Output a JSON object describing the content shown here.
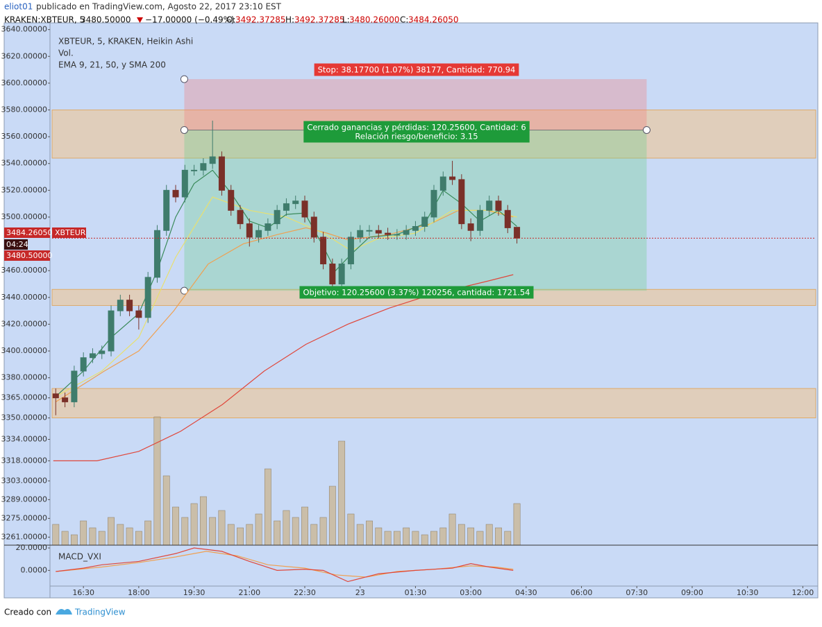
{
  "header": {
    "author": "eliot01",
    "published": "publicado en TradingView.com, Agosto 22, 2017 23:10 EST",
    "symbol": "KRAKEN:XBTEUR, 5",
    "last": "3480.50000",
    "change": "−17.00000 (−0.49%)",
    "o_label": "O:",
    "o": "3492.37285",
    "h_label": "H:",
    "h": "3492.37285",
    "l_label": "L:",
    "l": "3480.26000",
    "c_label": "C:",
    "c": "3484.26050"
  },
  "chart_data": {
    "type": "candlestick",
    "title": "XBTEUR, 5, KRAKEN, Heikin Ashi",
    "volume_label": "Vol.",
    "indicators_label": "EMA 9, 21, 50, y SMA 200",
    "x": [
      945,
      960,
      975,
      990,
      1005,
      1020,
      1035,
      1050,
      1065,
      1080,
      1095,
      1110,
      1125,
      1140,
      1155,
      1170,
      1185,
      1200,
      1215,
      1230,
      1245,
      1260,
      1275,
      1290,
      1305,
      1320,
      1335,
      1350,
      1365,
      1380,
      1395,
      1410,
      1425,
      1440,
      1455,
      1470,
      1485,
      1500,
      1515,
      1530,
      1545,
      1560,
      1575,
      1590,
      1605,
      1620,
      1635,
      1650,
      1665,
      1680,
      1695
    ],
    "open": [
      3368,
      3365,
      3362,
      3385,
      3395,
      3398,
      3400,
      3430,
      3438,
      3430,
      3425,
      3455,
      3490,
      3520,
      3515,
      3535,
      3535,
      3540,
      3545,
      3520,
      3505,
      3495,
      3485,
      3490,
      3495,
      3505,
      3510,
      3512,
      3500,
      3485,
      3465,
      3450,
      3465,
      3485,
      3490,
      3490,
      3488,
      3487,
      3487,
      3490,
      3493,
      3500,
      3520,
      3530,
      3528,
      3495,
      3490,
      3505,
      3512,
      3505,
      3492.37285
    ],
    "high": [
      3372,
      3369,
      3389,
      3399,
      3402,
      3404,
      3434,
      3442,
      3442,
      3434,
      3459,
      3494,
      3524,
      3524,
      3539,
      3539,
      3544,
      3572,
      3549,
      3524,
      3509,
      3499,
      3494,
      3499,
      3509,
      3514,
      3516,
      3516,
      3504,
      3489,
      3469,
      3469,
      3489,
      3494,
      3494,
      3494,
      3492,
      3491,
      3494,
      3497,
      3504,
      3524,
      3534,
      3542,
      3532,
      3499,
      3509,
      3516,
      3516,
      3509,
      3492.37285
    ],
    "low": [
      3352,
      3358,
      3358,
      3381,
      3391,
      3394,
      3396,
      3426,
      3426,
      3416,
      3421,
      3451,
      3486,
      3511,
      3511,
      3531,
      3531,
      3536,
      3516,
      3501,
      3491,
      3478,
      3481,
      3486,
      3491,
      3501,
      3506,
      3496,
      3481,
      3461,
      3443,
      3446,
      3461,
      3481,
      3486,
      3484,
      3483,
      3483,
      3483,
      3486,
      3489,
      3496,
      3516,
      3524,
      3491,
      3482,
      3486,
      3501,
      3501,
      3488,
      3480.26
    ],
    "close": [
      3365,
      3362,
      3385,
      3395,
      3398,
      3400,
      3430,
      3438,
      3430,
      3425,
      3455,
      3490,
      3520,
      3515,
      3535,
      3535,
      3540,
      3545,
      3520,
      3505,
      3495,
      3485,
      3490,
      3495,
      3505,
      3510,
      3512,
      3500,
      3485,
      3465,
      3450,
      3465,
      3485,
      3490,
      3490,
      3488,
      3487,
      3487,
      3490,
      3493,
      3500,
      3520,
      3530,
      3528,
      3495,
      3490,
      3505,
      3512,
      3505,
      3492,
      3484.2605
    ],
    "up_color": "#3f7c6c",
    "down_color": "#7a3029",
    "volume": [
      30,
      20,
      15,
      35,
      25,
      20,
      40,
      30,
      25,
      20,
      35,
      185,
      100,
      55,
      40,
      60,
      70,
      40,
      50,
      30,
      25,
      30,
      45,
      110,
      35,
      50,
      40,
      55,
      30,
      40,
      85,
      150,
      45,
      30,
      35,
      25,
      20,
      20,
      25,
      20,
      15,
      20,
      25,
      45,
      30,
      25,
      20,
      30,
      25,
      20,
      60
    ],
    "volume_color": "#c9b48f",
    "lines": [
      {
        "color": "#e0473b",
        "x": [
          941,
          1012,
          1080,
          1148,
          1216,
          1284,
          1352,
          1420,
          1487,
          1555,
          1646,
          1689
        ],
        "values": [
          3318,
          3318,
          3325,
          3340,
          3360,
          3385,
          3405,
          3420,
          3432,
          3442,
          3452,
          3457
        ]
      },
      {
        "color": "#f0a050",
        "x": [
          945,
          1024,
          1080,
          1137,
          1193,
          1250,
          1306,
          1352,
          1386,
          1420,
          1487,
          1555,
          1600,
          1646,
          1689
        ],
        "values": [
          3362,
          3385,
          3400,
          3430,
          3465,
          3480,
          3487,
          3492,
          3488,
          3483,
          3487,
          3495,
          3505,
          3505,
          3500
        ]
      },
      {
        "color": "#e8e070",
        "x": [
          945,
          1020,
          1080,
          1140,
          1200,
          1260,
          1320,
          1380,
          1425,
          1470,
          1530,
          1590,
          1650,
          1695
        ],
        "values": [
          3366,
          3385,
          3410,
          3470,
          3515,
          3505,
          3500,
          3488,
          3475,
          3484,
          3488,
          3505,
          3505,
          3500
        ]
      },
      {
        "color": "#3a8a5a",
        "x": [
          945,
          990,
          1035,
          1080,
          1110,
          1140,
          1170,
          1200,
          1230,
          1260,
          1290,
          1320,
          1350,
          1380,
          1400,
          1425,
          1455,
          1500,
          1545,
          1575,
          1605,
          1635,
          1665,
          1695
        ],
        "values": [
          3366,
          3385,
          3410,
          3428,
          3460,
          3500,
          3525,
          3535,
          3518,
          3497,
          3492,
          3502,
          3503,
          3478,
          3460,
          3472,
          3485,
          3487,
          3495,
          3520,
          3510,
          3497,
          3505,
          3493
        ]
      }
    ],
    "xlim": [
      939,
      2181
    ],
    "xticks": [
      {
        "value": 990,
        "label": "16:30"
      },
      {
        "value": 1080,
        "label": "18:00"
      },
      {
        "value": 1170,
        "label": "19:30"
      },
      {
        "value": 1260,
        "label": "21:00"
      },
      {
        "value": 1350,
        "label": "22:30"
      },
      {
        "value": 1440,
        "label": "23"
      },
      {
        "value": 1530,
        "label": "01:30"
      },
      {
        "value": 1620,
        "label": "03:00"
      },
      {
        "value": 1710,
        "label": "04:30"
      },
      {
        "value": 1800,
        "label": "06:00"
      },
      {
        "value": 1890,
        "label": "07:30"
      },
      {
        "value": 1980,
        "label": "09:00"
      },
      {
        "value": 2070,
        "label": "10:30"
      },
      {
        "value": 2160,
        "label": "12:00"
      }
    ],
    "ylim": [
      3255,
      3645
    ],
    "yticks": [
      {
        "value": 3640,
        "label": "3640.00000"
      },
      {
        "value": 3620,
        "label": "3620.00000"
      },
      {
        "value": 3600,
        "label": "3600.00000"
      },
      {
        "value": 3580,
        "label": "3580.00000"
      },
      {
        "value": 3560,
        "label": "3560.00000"
      },
      {
        "value": 3540,
        "label": "3540.00000"
      },
      {
        "value": 3520,
        "label": "3520.00000"
      },
      {
        "value": 3500,
        "label": "3500.00000"
      },
      {
        "value": 3460,
        "label": "3460.00000"
      },
      {
        "value": 3440,
        "label": "3440.00000"
      },
      {
        "value": 3420,
        "label": "3420.00000"
      },
      {
        "value": 3400,
        "label": "3400.00000"
      },
      {
        "value": 3380,
        "label": "3380.00000"
      },
      {
        "value": 3365,
        "label": "3365.00000"
      },
      {
        "value": 3350,
        "label": "3350.00000"
      },
      {
        "value": 3334,
        "label": "3334.00000"
      },
      {
        "value": 3318,
        "label": "3318.00000"
      },
      {
        "value": 3303,
        "label": "3303.00000"
      },
      {
        "value": 3289,
        "label": "3289.00000"
      },
      {
        "value": 3275,
        "label": "3275.00000"
      },
      {
        "value": 3261,
        "label": "3261.00000"
      }
    ],
    "zones": [
      {
        "from": 3544,
        "to": 3580
      },
      {
        "from": 3434,
        "to": 3446
      },
      {
        "from": 3350,
        "to": 3372
      }
    ],
    "zone_color": "#f2c48a",
    "position": {
      "x": [
        1154,
        1906
      ],
      "stop": 3603,
      "entry": 3565,
      "target": 3445,
      "stop_label": "Stop: 38.17700 (1.07%) 38177, Cantidad: 770.94",
      "result_label": "Cerrado ganancias y pérdidas: 120.25600, Cantidad: 6",
      "ratio_label": "Relación riesgo/beneficio: 3.15",
      "target_label": "Objetivo: 120.25600 (3.37%) 120256, cantidad: 1721.54"
    },
    "price_tags": {
      "price": "3484.26050",
      "symbol": "XBTEUR",
      "countdown": "04:24",
      "last": "3480.50000"
    },
    "macd": {
      "label": "MACD_VXI",
      "ylim": [
        -14,
        22.5
      ],
      "yticks": [
        {
          "value": 20,
          "label": "20.0000"
        },
        {
          "value": 0,
          "label": "0.0000"
        }
      ],
      "lines": [
        {
          "color": "#f0a050",
          "x": [
            945,
            1020,
            1080,
            1140,
            1190,
            1240,
            1290,
            1350,
            1400,
            1450,
            1500,
            1560,
            1620,
            1660,
            1689
          ],
          "values": [
            -1,
            3,
            7,
            12,
            17,
            13,
            5,
            2,
            -4,
            -6,
            -1,
            1,
            4,
            3,
            1
          ]
        },
        {
          "color": "#e0473b",
          "x": [
            945,
            990,
            1020,
            1080,
            1140,
            1170,
            1215,
            1260,
            1305,
            1350,
            1380,
            1420,
            1470,
            1530,
            1590,
            1620,
            1650,
            1689
          ],
          "values": [
            -1,
            2,
            5,
            8,
            15,
            20,
            17,
            8,
            0,
            1,
            0,
            -10,
            -3,
            0,
            2,
            6,
            3,
            0
          ]
        }
      ]
    }
  },
  "footer": {
    "made_with": "Creado con",
    "brand": "TradingView"
  }
}
